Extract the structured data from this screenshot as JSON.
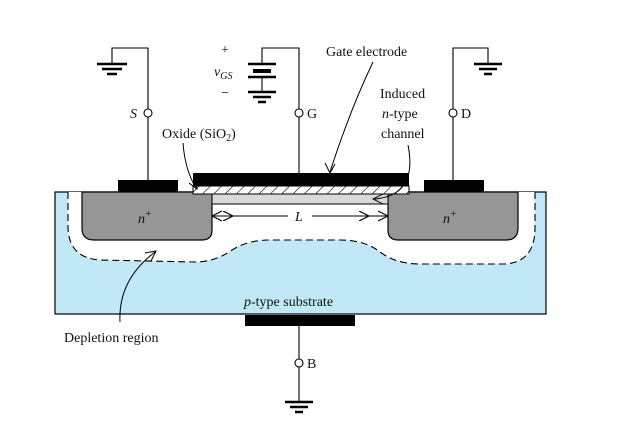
{
  "labels": {
    "source": "S",
    "gate": "G",
    "drain": "D",
    "body": "B",
    "plus": "+",
    "minus": "−",
    "vgs_main": "v",
    "vgs_sub": "GS",
    "gate_electrode": "Gate electrode",
    "oxide_main": "Oxide (SiO",
    "oxide_sub": "2",
    "oxide_close": ")",
    "induced_line1": "Induced",
    "induced_n": "n",
    "induced_line2_rest": "-type",
    "induced_line3": "channel",
    "n_plus_left": "n",
    "n_plus_right": "n",
    "n_plus_sup": "+",
    "channel_length": "L",
    "substrate_p": "p",
    "substrate_rest": "-type substrate",
    "depletion": "Depletion region"
  },
  "colors": {
    "substrate": "#c1e8f6",
    "n_region": "#969696",
    "metal": "#000000",
    "oxide": "#ffffff",
    "channel": "#d9d9d9",
    "wire": "#000000"
  }
}
